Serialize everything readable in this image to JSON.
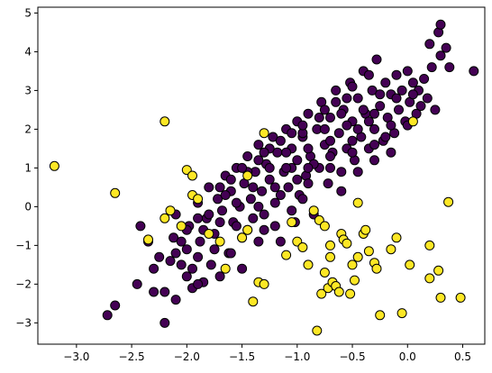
{
  "chart_data": {
    "type": "scatter",
    "title": "",
    "xlabel": "",
    "ylabel": "",
    "xlim": [
      -3.35,
      0.7
    ],
    "ylim": [
      -3.55,
      5.15
    ],
    "xticks": [
      -3.0,
      -2.5,
      -2.0,
      -1.5,
      -1.0,
      -0.5,
      0.0,
      0.5
    ],
    "xtick_labels": [
      "−3.0",
      "−2.5",
      "−2.0",
      "−1.5",
      "−1.0",
      "−0.5",
      "0.0",
      "0.5"
    ],
    "yticks": [
      -3,
      -2,
      -1,
      0,
      1,
      2,
      3,
      4,
      5
    ],
    "ytick_labels": [
      "−3",
      "−2",
      "−1",
      "0",
      "1",
      "2",
      "3",
      "4",
      "5"
    ],
    "grid": false,
    "legend": "none",
    "marker_edge_color": "#000000",
    "series": [
      {
        "color": "#440154",
        "points": [
          [
            -2.72,
            -2.8
          ],
          [
            -2.65,
            -2.55
          ],
          [
            -2.45,
            -2.0
          ],
          [
            -2.42,
            -0.5
          ],
          [
            -2.35,
            -0.9
          ],
          [
            -2.3,
            -2.2
          ],
          [
            -2.25,
            -1.3
          ],
          [
            -2.2,
            -3.0
          ],
          [
            -2.2,
            -2.2
          ],
          [
            -2.15,
            -1.4
          ],
          [
            -2.12,
            -0.8
          ],
          [
            -2.1,
            -0.2
          ],
          [
            -2.1,
            -2.4
          ],
          [
            -2.05,
            -1.5
          ],
          [
            -2.0,
            -1.1
          ],
          [
            -2.0,
            -1.8
          ],
          [
            -1.98,
            -0.5
          ],
          [
            -1.95,
            -2.1
          ],
          [
            -1.9,
            0.1
          ],
          [
            -1.9,
            -1.3
          ],
          [
            -1.88,
            -0.9
          ],
          [
            -1.85,
            -1.95
          ],
          [
            -1.82,
            -0.3
          ],
          [
            -1.8,
            0.5
          ],
          [
            -1.78,
            -1.5
          ],
          [
            -1.75,
            -0.7
          ],
          [
            -1.72,
            0.2
          ],
          [
            -1.7,
            -1.8
          ],
          [
            -1.68,
            -0.1
          ],
          [
            -1.65,
            0.8
          ],
          [
            -1.62,
            -1.2
          ],
          [
            -1.6,
            0.4
          ],
          [
            -1.58,
            -0.4
          ],
          [
            -1.55,
            1.0
          ],
          [
            -1.52,
            0.0
          ],
          [
            -1.5,
            -0.8
          ],
          [
            -1.48,
            0.6
          ],
          [
            -1.45,
            1.3
          ],
          [
            -1.42,
            0.2
          ],
          [
            -1.4,
            -0.3
          ],
          [
            -1.38,
            0.9
          ],
          [
            -1.35,
            1.6
          ],
          [
            -1.32,
            0.4
          ],
          [
            -1.3,
            -0.6
          ],
          [
            -1.28,
            1.1
          ],
          [
            -1.25,
            0.7
          ],
          [
            -1.22,
            1.8
          ],
          [
            -1.2,
            0.1
          ],
          [
            -1.18,
            1.4
          ],
          [
            -1.15,
            -0.9
          ],
          [
            -1.12,
            0.9
          ],
          [
            -1.1,
            2.0
          ],
          [
            -1.08,
            0.5
          ],
          [
            -1.05,
            1.5
          ],
          [
            -1.02,
            -0.4
          ],
          [
            -1.0,
            1.2
          ],
          [
            -1.0,
            2.2
          ],
          [
            -0.98,
            0.3
          ],
          [
            -0.95,
            1.8
          ],
          [
            -0.92,
            0.8
          ],
          [
            -0.9,
            2.4
          ],
          [
            -0.88,
            1.3
          ],
          [
            -0.85,
            -0.2
          ],
          [
            -0.82,
            2.0
          ],
          [
            -0.8,
            1.0
          ],
          [
            -0.78,
            2.7
          ],
          [
            -0.75,
            1.6
          ],
          [
            -0.72,
            0.6
          ],
          [
            -0.7,
            2.3
          ],
          [
            -0.68,
            1.4
          ],
          [
            -0.65,
            3.0
          ],
          [
            -0.62,
            1.9
          ],
          [
            -0.6,
            0.9
          ],
          [
            -0.58,
            2.5
          ],
          [
            -0.55,
            1.5
          ],
          [
            -0.52,
            3.2
          ],
          [
            -0.5,
            2.2
          ],
          [
            -0.48,
            1.2
          ],
          [
            -0.45,
            2.8
          ],
          [
            -0.42,
            1.8
          ],
          [
            -0.4,
            3.5
          ],
          [
            -0.38,
            2.4
          ],
          [
            -0.35,
            1.5
          ],
          [
            -0.32,
            3.0
          ],
          [
            -0.3,
            2.0
          ],
          [
            -0.28,
            3.8
          ],
          [
            -0.25,
            2.6
          ],
          [
            -0.22,
            1.7
          ],
          [
            -0.2,
            3.2
          ],
          [
            -0.18,
            2.3
          ],
          [
            -0.15,
            2.9
          ],
          [
            -0.12,
            1.9
          ],
          [
            -0.1,
            3.4
          ],
          [
            -0.08,
            2.5
          ],
          [
            -0.05,
            3.0
          ],
          [
            -0.02,
            2.2
          ],
          [
            0.0,
            3.5
          ],
          [
            0.02,
            2.7
          ],
          [
            0.05,
            3.2
          ],
          [
            0.08,
            2.4
          ],
          [
            0.1,
            3.0
          ],
          [
            0.12,
            2.6
          ],
          [
            0.15,
            3.3
          ],
          [
            0.18,
            2.8
          ],
          [
            0.2,
            4.2
          ],
          [
            0.22,
            3.6
          ],
          [
            0.25,
            2.5
          ],
          [
            0.28,
            4.5
          ],
          [
            0.3,
            3.9
          ],
          [
            0.3,
            4.7
          ],
          [
            0.35,
            4.1
          ],
          [
            0.38,
            3.6
          ],
          [
            0.6,
            3.5
          ],
          [
            -1.6,
            -1.2
          ],
          [
            -1.45,
            -0.6
          ],
          [
            -1.3,
            -0.2
          ],
          [
            -1.15,
            0.3
          ],
          [
            -1.0,
            0.7
          ],
          [
            -0.85,
            1.1
          ],
          [
            -0.7,
            1.7
          ],
          [
            -0.55,
            2.1
          ],
          [
            -0.4,
            2.5
          ],
          [
            -0.25,
            2.9
          ],
          [
            -1.7,
            -0.4
          ],
          [
            -1.55,
            0.1
          ],
          [
            -1.4,
            0.5
          ],
          [
            -1.25,
            1.0
          ],
          [
            -1.1,
            1.4
          ],
          [
            -0.95,
            1.9
          ],
          [
            -0.8,
            2.3
          ],
          [
            -0.65,
            2.7
          ],
          [
            -0.5,
            3.1
          ],
          [
            -0.35,
            3.4
          ],
          [
            -1.85,
            -0.6
          ],
          [
            -1.65,
            0.3
          ],
          [
            -1.45,
            0.9
          ],
          [
            -1.25,
            1.5
          ],
          [
            -1.05,
            1.9
          ],
          [
            -0.9,
            1.5
          ],
          [
            -0.75,
            2.0
          ],
          [
            -0.6,
            2.4
          ],
          [
            -0.45,
            2.0
          ],
          [
            -0.3,
            2.4
          ],
          [
            -2.0,
            -0.6
          ],
          [
            -1.8,
            -0.2
          ],
          [
            -1.6,
            0.7
          ],
          [
            -1.35,
            1.2
          ],
          [
            -1.15,
            1.7
          ],
          [
            -0.95,
            2.1
          ],
          [
            -0.75,
            2.5
          ],
          [
            -0.55,
            2.8
          ],
          [
            -0.35,
            2.2
          ],
          [
            -0.15,
            2.1
          ],
          [
            -1.95,
            -1.6
          ],
          [
            -1.75,
            -1.1
          ],
          [
            -1.55,
            -0.5
          ],
          [
            -1.35,
            0.0
          ],
          [
            -1.2,
            0.5
          ],
          [
            -1.05,
            1.0
          ],
          [
            -0.9,
            1.0
          ],
          [
            -0.7,
            1.3
          ],
          [
            -0.5,
            1.7
          ],
          [
            -0.3,
            1.6
          ],
          [
            -2.3,
            -1.6
          ],
          [
            -2.05,
            -0.9
          ],
          [
            -1.9,
            -0.3
          ],
          [
            -1.7,
            0.5
          ],
          [
            -1.5,
            1.0
          ],
          [
            -1.3,
            1.4
          ],
          [
            -1.1,
            1.0
          ],
          [
            -0.9,
            0.6
          ],
          [
            -0.7,
            1.0
          ],
          [
            -0.5,
            1.4
          ],
          [
            -0.2,
            1.8
          ],
          [
            -0.1,
            2.8
          ],
          [
            0.05,
            2.9
          ],
          [
            0.0,
            2.1
          ],
          [
            -0.95,
            0.2
          ],
          [
            -1.05,
            -0.1
          ],
          [
            -1.2,
            -0.5
          ],
          [
            -1.35,
            -0.9
          ],
          [
            -1.5,
            -1.6
          ],
          [
            -1.9,
            -2.0
          ],
          [
            -2.1,
            -1.2
          ],
          [
            -0.6,
            0.4
          ],
          [
            -0.45,
            0.9
          ],
          [
            -0.3,
            1.2
          ],
          [
            -0.15,
            1.4
          ]
        ]
      },
      {
        "color": "#fde725",
        "points": [
          [
            -3.2,
            1.05
          ],
          [
            -2.65,
            0.35
          ],
          [
            -2.2,
            2.2
          ],
          [
            -2.35,
            -0.85
          ],
          [
            -2.2,
            -0.3
          ],
          [
            -2.15,
            -0.1
          ],
          [
            -2.0,
            0.95
          ],
          [
            -1.95,
            0.8
          ],
          [
            -1.95,
            0.3
          ],
          [
            -1.9,
            0.2
          ],
          [
            -2.05,
            -0.5
          ],
          [
            -1.8,
            -0.7
          ],
          [
            -1.7,
            -0.9
          ],
          [
            -1.65,
            -1.6
          ],
          [
            -1.5,
            -0.8
          ],
          [
            -1.45,
            -0.6
          ],
          [
            -1.4,
            -2.45
          ],
          [
            -1.35,
            -1.95
          ],
          [
            -1.3,
            -2.0
          ],
          [
            -1.45,
            0.8
          ],
          [
            -1.3,
            1.9
          ],
          [
            -1.1,
            -1.25
          ],
          [
            -1.05,
            -0.4
          ],
          [
            -1.0,
            -0.9
          ],
          [
            -0.95,
            -1.05
          ],
          [
            -0.9,
            -1.5
          ],
          [
            -0.85,
            -0.1
          ],
          [
            -0.8,
            -0.35
          ],
          [
            -0.75,
            -0.5
          ],
          [
            -0.7,
            -1.0
          ],
          [
            -0.82,
            -3.2
          ],
          [
            -0.78,
            -2.25
          ],
          [
            -0.75,
            -1.7
          ],
          [
            -0.72,
            -2.1
          ],
          [
            -0.7,
            -1.3
          ],
          [
            -0.68,
            -1.95
          ],
          [
            -0.65,
            -2.05
          ],
          [
            -0.62,
            -2.2
          ],
          [
            -0.6,
            -0.7
          ],
          [
            -0.58,
            -0.85
          ],
          [
            -0.55,
            -0.95
          ],
          [
            -0.52,
            -2.25
          ],
          [
            -0.5,
            -1.5
          ],
          [
            -0.48,
            -1.9
          ],
          [
            -0.45,
            0.1
          ],
          [
            -0.45,
            -1.3
          ],
          [
            -0.4,
            -0.7
          ],
          [
            -0.38,
            -0.6
          ],
          [
            -0.35,
            -1.15
          ],
          [
            -0.3,
            -1.45
          ],
          [
            -0.28,
            -1.6
          ],
          [
            -0.25,
            -2.8
          ],
          [
            -0.15,
            -1.1
          ],
          [
            -0.1,
            -0.8
          ],
          [
            -0.05,
            -2.75
          ],
          [
            0.02,
            -1.5
          ],
          [
            0.05,
            2.2
          ],
          [
            0.2,
            -1.0
          ],
          [
            0.2,
            -1.85
          ],
          [
            0.28,
            -1.65
          ],
          [
            0.3,
            -2.35
          ],
          [
            0.37,
            0.12
          ],
          [
            0.48,
            -2.35
          ]
        ]
      }
    ]
  }
}
